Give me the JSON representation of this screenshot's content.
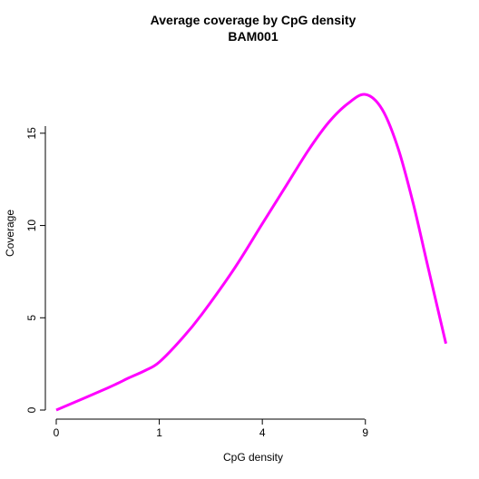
{
  "chart_data": {
    "type": "line",
    "title": "Average coverage by CpG density",
    "subtitle": "BAM001",
    "xlabel": "CpG density",
    "ylabel": "Coverage",
    "x_ticks": [
      {
        "value": 0,
        "label": "0"
      },
      {
        "value": 1,
        "label": "1"
      },
      {
        "value": 4,
        "label": "4"
      },
      {
        "value": 9,
        "label": "9"
      }
    ],
    "y_ticks": [
      {
        "value": 0,
        "label": "0"
      },
      {
        "value": 5,
        "label": "5"
      },
      {
        "value": 10,
        "label": "10"
      },
      {
        "value": 15,
        "label": "15"
      }
    ],
    "x_scale": "sqrt",
    "xlim": [
      0,
      14.6
    ],
    "ylim": [
      0,
      17.5
    ],
    "grid": false,
    "series": [
      {
        "color": "#ff00ff",
        "x": [
          0,
          0.25,
          0.5,
          0.75,
          1,
          1.5,
          2,
          3,
          4,
          5,
          6,
          7,
          8,
          9,
          10,
          11,
          12,
          13,
          14.3
        ],
        "y": [
          0,
          1.2,
          1.75,
          2.15,
          2.6,
          3.9,
          5.2,
          7.7,
          10.1,
          12.2,
          14.1,
          15.6,
          16.6,
          17.1,
          16.3,
          14.2,
          11.2,
          7.8,
          3.6
        ]
      }
    ]
  }
}
